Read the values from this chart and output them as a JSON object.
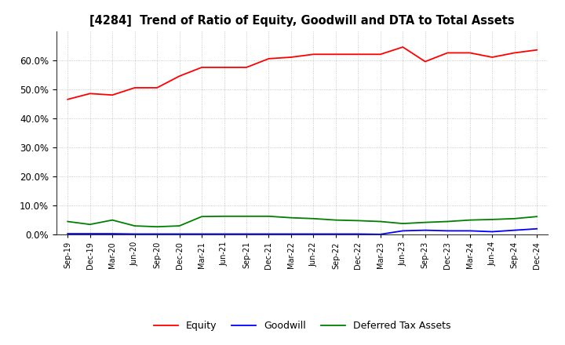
{
  "title": "[4284]  Trend of Ratio of Equity, Goodwill and DTA to Total Assets",
  "labels": [
    "Sep-19",
    "Dec-19",
    "Mar-20",
    "Jun-20",
    "Sep-20",
    "Dec-20",
    "Mar-21",
    "Jun-21",
    "Sep-21",
    "Dec-21",
    "Mar-22",
    "Jun-22",
    "Sep-22",
    "Dec-22",
    "Mar-23",
    "Jun-23",
    "Sep-23",
    "Dec-23",
    "Mar-24",
    "Jun-24",
    "Sep-24",
    "Dec-24"
  ],
  "equity": [
    46.5,
    48.5,
    48.0,
    50.5,
    50.5,
    54.5,
    57.5,
    57.5,
    57.5,
    60.5,
    61.0,
    62.0,
    62.0,
    62.0,
    62.0,
    64.5,
    59.5,
    62.5,
    62.5,
    61.0,
    62.5,
    63.5
  ],
  "goodwill": [
    0.3,
    0.3,
    0.3,
    0.2,
    0.2,
    0.2,
    0.2,
    0.2,
    0.2,
    0.2,
    0.2,
    0.2,
    0.2,
    0.2,
    0.1,
    1.3,
    1.5,
    1.3,
    1.3,
    1.0,
    1.5,
    2.0
  ],
  "dta": [
    4.5,
    3.5,
    5.0,
    3.0,
    2.7,
    3.0,
    6.2,
    6.3,
    6.3,
    6.3,
    5.8,
    5.5,
    5.0,
    4.8,
    4.5,
    3.8,
    4.2,
    4.5,
    5.0,
    5.2,
    5.5,
    6.2
  ],
  "equity_color": "#ff0000",
  "goodwill_color": "#0000ff",
  "dta_color": "#008000",
  "background_color": "#ffffff",
  "grid_color": "#aaaaaa",
  "ylim": [
    0,
    70
  ],
  "yticks": [
    0.0,
    10.0,
    20.0,
    30.0,
    40.0,
    50.0,
    60.0
  ],
  "legend_labels": [
    "Equity",
    "Goodwill",
    "Deferred Tax Assets"
  ]
}
